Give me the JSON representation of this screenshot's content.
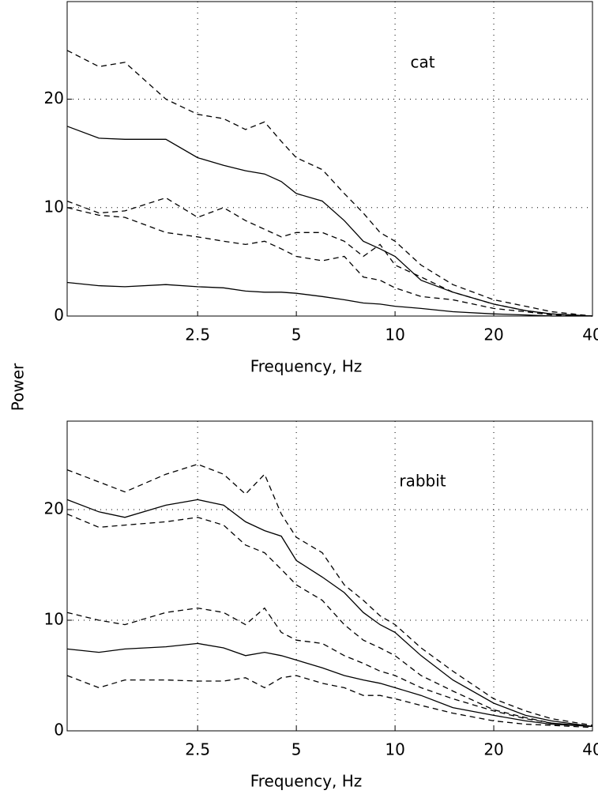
{
  "chart_data": [
    {
      "type": "line",
      "annotation": "cat",
      "xlabel": "Frequency, Hz",
      "ylabel": "Power",
      "x": [
        1,
        1.25,
        1.5,
        2,
        2.5,
        3,
        3.5,
        4,
        4.5,
        5,
        6,
        7,
        8,
        9,
        10,
        12,
        15,
        20,
        25,
        30,
        40
      ],
      "xscale": "log",
      "xlim": [
        1,
        40
      ],
      "xticks": [
        2.5,
        5,
        10,
        20,
        40
      ],
      "ylim": [
        0,
        29
      ],
      "yticks": [
        0,
        10,
        20
      ],
      "grid": true,
      "series": [
        {
          "color": "#000000",
          "style": "dashed",
          "values": [
            24.5,
            23,
            23.4,
            20,
            18.6,
            18.2,
            17.2,
            17.9,
            16.1,
            14.6,
            13.5,
            11.3,
            9.5,
            7.7,
            6.9,
            4.7,
            2.9,
            1.5,
            0.9,
            0.4,
            0
          ]
        },
        {
          "color": "#000000",
          "style": "solid",
          "values": [
            17.5,
            16.4,
            16.3,
            16.3,
            14.6,
            13.9,
            13.4,
            13.1,
            12.4,
            11.3,
            10.6,
            8.8,
            6.9,
            6.2,
            5.5,
            3.3,
            2.2,
            1.1,
            0.5,
            0.2,
            0
          ]
        },
        {
          "color": "#000000",
          "style": "dashed",
          "values": [
            10.6,
            9.5,
            9.7,
            10.9,
            9.1,
            10.0,
            8.8,
            8.0,
            7.3,
            7.7,
            7.7,
            6.9,
            5.5,
            6.6,
            4.7,
            3.6,
            2.2,
            1.1,
            0.5,
            0.2,
            0
          ]
        },
        {
          "color": "#000000",
          "style": "dashed",
          "values": [
            10.0,
            9.3,
            9.1,
            7.7,
            7.3,
            6.9,
            6.6,
            6.9,
            6.2,
            5.5,
            5.1,
            5.5,
            3.6,
            3.3,
            2.6,
            1.8,
            1.5,
            0.7,
            0.4,
            0.1,
            0
          ]
        },
        {
          "color": "#000000",
          "style": "solid",
          "values": [
            3.1,
            2.8,
            2.7,
            2.9,
            2.7,
            2.6,
            2.3,
            2.2,
            2.2,
            2.1,
            1.8,
            1.5,
            1.2,
            1.1,
            0.9,
            0.7,
            0.4,
            0.2,
            0.1,
            0,
            0
          ]
        }
      ]
    },
    {
      "type": "line",
      "annotation": "rabbit",
      "xlabel": "Frequency, Hz",
      "x": [
        1,
        1.25,
        1.5,
        2,
        2.5,
        3,
        3.5,
        4,
        4.5,
        5,
        6,
        7,
        8,
        9,
        10,
        12,
        15,
        20,
        25,
        30,
        40
      ],
      "xscale": "log",
      "xlim": [
        1,
        40
      ],
      "xticks": [
        2.5,
        5,
        10,
        20,
        40
      ],
      "ylim": [
        0,
        28
      ],
      "yticks": [
        0,
        10,
        20
      ],
      "grid": true,
      "series": [
        {
          "color": "#000000",
          "style": "dashed",
          "values": [
            23.6,
            22.5,
            21.6,
            23.2,
            24.1,
            23.2,
            21.4,
            23.2,
            19.6,
            17.5,
            16.1,
            13.2,
            11.8,
            10.4,
            9.6,
            7.5,
            5.4,
            2.9,
            1.8,
            1.1,
            0.5
          ]
        },
        {
          "color": "#000000",
          "style": "solid",
          "values": [
            20.9,
            19.8,
            19.3,
            20.4,
            20.9,
            20.4,
            18.9,
            18.1,
            17.6,
            15.4,
            13.9,
            12.5,
            10.7,
            9.6,
            8.9,
            6.8,
            4.6,
            2.5,
            1.4,
            0.9,
            0.4
          ]
        },
        {
          "color": "#000000",
          "style": "dashed",
          "values": [
            19.6,
            18.4,
            18.6,
            18.9,
            19.3,
            18.6,
            16.8,
            16.1,
            14.6,
            13.2,
            11.8,
            9.6,
            8.2,
            7.5,
            6.8,
            5.0,
            3.6,
            1.9,
            1.2,
            0.7,
            0.4
          ]
        },
        {
          "color": "#000000",
          "style": "dashed",
          "values": [
            10.7,
            10.0,
            9.6,
            10.7,
            11.1,
            10.7,
            9.6,
            11.1,
            8.9,
            8.2,
            7.9,
            6.8,
            6.1,
            5.4,
            5.0,
            3.9,
            2.9,
            1.8,
            1.1,
            0.7,
            0.4
          ]
        },
        {
          "color": "#000000",
          "style": "solid",
          "values": [
            7.4,
            7.1,
            7.4,
            7.6,
            7.9,
            7.5,
            6.8,
            7.1,
            6.8,
            6.4,
            5.7,
            5.0,
            4.6,
            4.3,
            3.9,
            3.2,
            2.1,
            1.4,
            0.9,
            0.6,
            0.4
          ]
        },
        {
          "color": "#000000",
          "style": "dashed",
          "values": [
            5.0,
            3.9,
            4.6,
            4.6,
            4.5,
            4.5,
            4.8,
            3.9,
            4.8,
            5.0,
            4.3,
            3.9,
            3.2,
            3.2,
            2.9,
            2.3,
            1.6,
            0.9,
            0.6,
            0.5,
            0.3
          ]
        }
      ]
    }
  ]
}
